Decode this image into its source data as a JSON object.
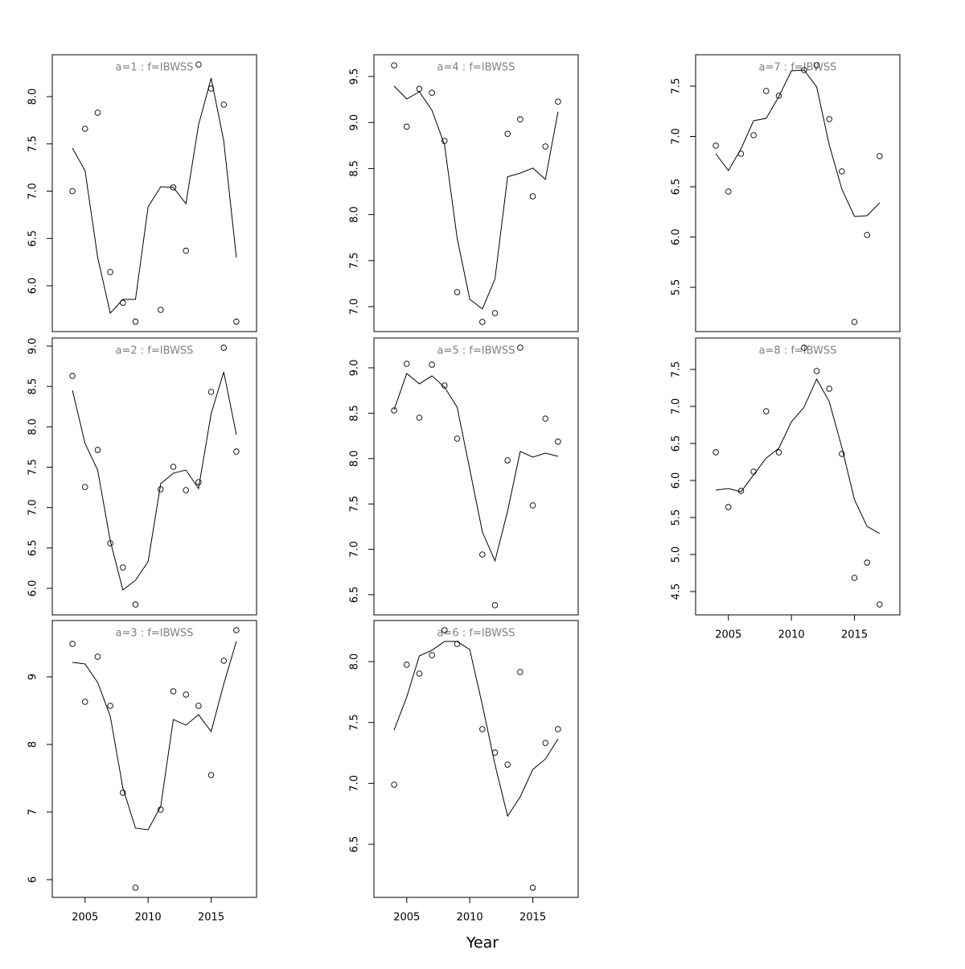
{
  "x_label": "Year",
  "chart_data": [
    {
      "type": "line",
      "title": "a=1  :  f=IBWSS",
      "x": [
        2004,
        2005,
        2006,
        2007,
        2008,
        2009,
        2010,
        2011,
        2012,
        2013,
        2014,
        2015,
        2016,
        2017
      ],
      "xlim": [
        2002.4,
        2018.6
      ],
      "ylim": [
        5.515,
        8.443
      ],
      "yticks": [
        {
          "value": 6,
          "label": "6.0"
        },
        6.5,
        {
          "value": 7,
          "label": "7.0"
        },
        7.5,
        {
          "value": 8,
          "label": "8.0"
        }
      ],
      "series": [
        {
          "style": "points",
          "color": "#000000",
          "values": [
            7.0,
            7.66,
            7.83,
            6.145,
            5.82,
            5.62,
            null,
            5.745,
            7.04,
            6.37,
            8.34,
            8.085,
            7.915,
            5.62
          ]
        },
        {
          "style": "line",
          "color": "#000000",
          "values": [
            7.455,
            7.217,
            6.3,
            5.71,
            5.855,
            5.855,
            6.834,
            7.047,
            7.04,
            6.868,
            7.7,
            8.196,
            7.532,
            6.3
          ]
        }
      ]
    },
    {
      "type": "line",
      "title": "a=2  :  f=IBWSS",
      "x": [
        2004,
        2005,
        2006,
        2007,
        2008,
        2009,
        2010,
        2011,
        2012,
        2013,
        2014,
        2015,
        2016,
        2017
      ],
      "xlim": [
        2002.4,
        2018.6
      ],
      "ylim": [
        5.671,
        9.1
      ],
      "yticks": [
        {
          "value": 6,
          "label": "6.0"
        },
        6.5,
        {
          "value": 7,
          "label": "7.0"
        },
        7.5,
        {
          "value": 8,
          "label": "8.0"
        },
        8.5,
        {
          "value": 9,
          "label": "9.0"
        }
      ],
      "series": [
        {
          "style": "points",
          "color": "#000000",
          "values": [
            8.631,
            7.255,
            7.714,
            6.558,
            6.258,
            5.8,
            null,
            7.226,
            7.505,
            7.216,
            7.315,
            8.432,
            8.98,
            7.694
          ]
        },
        {
          "style": "line",
          "color": "#000000",
          "values": [
            8.452,
            7.794,
            7.465,
            6.588,
            5.98,
            6.1,
            6.33,
            7.296,
            7.426,
            7.465,
            7.236,
            8.163,
            8.68,
            7.904
          ]
        }
      ]
    },
    {
      "type": "line",
      "title": "a=3  :  f=IBWSS",
      "x": [
        2004,
        2005,
        2006,
        2007,
        2008,
        2009,
        2010,
        2011,
        2012,
        2013,
        2014,
        2015,
        2016,
        2017
      ],
      "xlim": [
        2002.4,
        2018.6
      ],
      "ylim": [
        5.738,
        9.833
      ],
      "xticks": [
        2005,
        2010,
        2015
      ],
      "yticks": [
        6,
        7,
        8,
        9
      ],
      "series": [
        {
          "style": "points",
          "color": "#000000",
          "values": [
            9.488,
            8.631,
            9.298,
            8.571,
            7.286,
            5.881,
            null,
            7.036,
            8.786,
            8.738,
            8.571,
            7.548,
            9.238,
            9.69
          ]
        },
        {
          "style": "line",
          "color": "#000000",
          "values": [
            9.214,
            9.19,
            8.917,
            8.417,
            7.357,
            6.762,
            6.738,
            7.083,
            8.369,
            8.286,
            8.44,
            8.19,
            8.893,
            9.524
          ]
        }
      ]
    },
    {
      "type": "line",
      "title": "a=4  :  f=IBWSS",
      "x": [
        2004,
        2005,
        2006,
        2007,
        2008,
        2009,
        2010,
        2011,
        2012,
        2013,
        2014,
        2015,
        2016,
        2017
      ],
      "xlim": [
        2002.4,
        2018.6
      ],
      "ylim": [
        6.729,
        9.736
      ],
      "yticks": [
        {
          "value": 7,
          "label": "7.0"
        },
        7.5,
        {
          "value": 8,
          "label": "8.0"
        },
        8.5,
        {
          "value": 9,
          "label": "9.0"
        },
        9.5
      ],
      "series": [
        {
          "style": "points",
          "color": "#000000",
          "values": [
            9.62,
            8.955,
            9.366,
            9.323,
            8.8,
            7.157,
            null,
            6.834,
            6.93,
            8.877,
            9.034,
            8.198,
            8.74,
            9.227
          ]
        },
        {
          "style": "line",
          "color": "#000000",
          "values": [
            9.395,
            9.256,
            9.334,
            9.133,
            8.757,
            7.745,
            7.08,
            6.975,
            7.3,
            8.41,
            8.45,
            8.505,
            8.383,
            9.117
          ]
        }
      ]
    },
    {
      "type": "line",
      "title": "a=5  :  f=IBWSS",
      "x": [
        2004,
        2005,
        2006,
        2007,
        2008,
        2009,
        2010,
        2011,
        2012,
        2013,
        2014,
        2015,
        2016,
        2017
      ],
      "xlim": [
        2002.4,
        2018.6
      ],
      "ylim": [
        6.278,
        9.328
      ],
      "yticks": [
        6.5,
        {
          "value": 7,
          "label": "7.0"
        },
        7.5,
        {
          "value": 8,
          "label": "8.0"
        },
        8.5,
        {
          "value": 9,
          "label": "9.0"
        }
      ],
      "series": [
        {
          "style": "points",
          "color": "#000000",
          "values": [
            8.53,
            9.044,
            8.45,
            9.035,
            8.805,
            8.22,
            null,
            6.943,
            6.385,
            7.98,
            9.222,
            7.484,
            8.44,
            8.186
          ]
        },
        {
          "style": "line",
          "color": "#000000",
          "values": [
            8.539,
            8.938,
            8.823,
            8.911,
            8.787,
            8.566,
            7.883,
            7.192,
            6.872,
            7.422,
            8.078,
            8.016,
            8.06,
            8.025
          ]
        }
      ]
    },
    {
      "type": "line",
      "title": "a=6  :  f=IBWSS",
      "x": [
        2004,
        2005,
        2006,
        2007,
        2008,
        2009,
        2010,
        2011,
        2012,
        2013,
        2014,
        2015,
        2016,
        2017
      ],
      "xlim": [
        2002.4,
        2018.6
      ],
      "ylim": [
        6.064,
        8.337
      ],
      "xticks": [
        2005,
        2010,
        2015
      ],
      "yticks": [
        6.5,
        {
          "value": 7,
          "label": "7.0"
        },
        7.5,
        {
          "value": 8,
          "label": "8.0"
        }
      ],
      "series": [
        {
          "style": "points",
          "color": "#000000",
          "values": [
            6.989,
            7.974,
            7.901,
            8.053,
            8.258,
            8.145,
            null,
            7.445,
            7.253,
            7.154,
            7.914,
            6.143,
            7.332,
            7.445
          ]
        },
        {
          "style": "line",
          "color": "#000000",
          "values": [
            7.438,
            7.709,
            8.046,
            8.093,
            8.165,
            8.165,
            8.099,
            7.643,
            7.154,
            6.731,
            6.889,
            7.114,
            7.2,
            7.365
          ]
        }
      ]
    },
    {
      "type": "line",
      "title": "a=7  :  f=IBWSS",
      "x": [
        2004,
        2005,
        2006,
        2007,
        2008,
        2009,
        2010,
        2011,
        2012,
        2013,
        2014,
        2015,
        2016,
        2017
      ],
      "xlim": [
        2002.4,
        2018.6
      ],
      "ylim": [
        5.06,
        7.812
      ],
      "yticks": [
        5.5,
        {
          "value": 6,
          "label": "6.0"
        },
        6.5,
        {
          "value": 7,
          "label": "7.0"
        },
        7.5
      ],
      "series": [
        {
          "style": "points",
          "color": "#000000",
          "values": [
            6.908,
            6.452,
            6.828,
            7.012,
            7.452,
            7.404,
            null,
            7.66,
            7.708,
            7.172,
            6.652,
            5.156,
            6.02,
            6.804
          ]
        },
        {
          "style": "line",
          "color": "#000000",
          "values": [
            6.828,
            6.66,
            6.876,
            7.156,
            7.18,
            7.396,
            7.652,
            7.66,
            7.492,
            6.916,
            6.476,
            6.204,
            6.212,
            6.34
          ]
        }
      ]
    },
    {
      "type": "line",
      "title": "a=8  :  f=IBWSS",
      "x": [
        2004,
        2005,
        2006,
        2007,
        2008,
        2009,
        2010,
        2011,
        2012,
        2013,
        2014,
        2015,
        2016,
        2017
      ],
      "xlim": [
        2002.4,
        2018.6
      ],
      "ylim": [
        4.185,
        7.924
      ],
      "xticks": [
        2005,
        2010,
        2015
      ],
      "yticks": [
        4.5,
        {
          "value": 5,
          "label": "5.0"
        },
        5.5,
        {
          "value": 6,
          "label": "6.0"
        },
        6.5,
        {
          "value": 7,
          "label": "7.0"
        },
        7.5
      ],
      "series": [
        {
          "style": "points",
          "color": "#000000",
          "values": [
            6.38,
            5.641,
            5.859,
            6.12,
            6.935,
            6.38,
            null,
            7.793,
            7.478,
            7.239,
            6.359,
            4.685,
            4.891,
            4.326
          ]
        },
        {
          "style": "line",
          "color": "#000000",
          "values": [
            5.87,
            5.891,
            5.848,
            6.076,
            6.304,
            6.435,
            6.793,
            6.989,
            7.37,
            7.065,
            6.446,
            5.74,
            5.38,
            5.283
          ]
        }
      ]
    }
  ]
}
